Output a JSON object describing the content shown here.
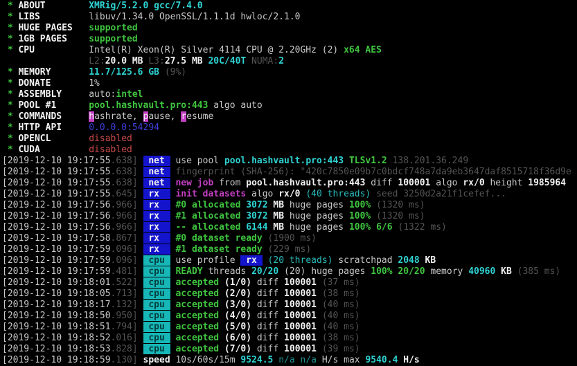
{
  "app": "XMRig miner console output",
  "colors": {
    "background": "#000000",
    "text": "#c9c9c9",
    "text_bright": "#f1f1f1",
    "green": "#3fc53f",
    "gray": "#545454",
    "cyan": "#2abdbd",
    "cyan_bright": "#2fd3d3",
    "cyan_dim": "#1f9191",
    "red": "#cd4a4a",
    "magenta": "#c33fc3",
    "blue": "#3e3ed8",
    "tag_blue_bg": "#1414cd",
    "tag_cyan_bg": "#17b7b7"
  },
  "tags": {
    "net": " net ",
    "rx": " rx  ",
    "cpu": " cpu "
  },
  "summary": [
    {
      "label": "ABOUT",
      "segments": [
        [
          "XMRig/5.2.0 gcc/7.4.0",
          "cb"
        ]
      ]
    },
    {
      "label": "LIBS",
      "segments": [
        [
          "libuv/1.34.0 OpenSSL/1.1.1d hwloc/2.1.0",
          "w"
        ]
      ]
    },
    {
      "label": "HUGE PAGES",
      "segments": [
        [
          "supported",
          "g"
        ]
      ]
    },
    {
      "label": "1GB PAGES",
      "segments": [
        [
          "supported",
          "g"
        ]
      ]
    },
    {
      "label": "CPU",
      "segments": [
        [
          "Intel(R) Xeon(R) Silver 4114 CPU @ 2.20GHz (2) ",
          "w"
        ],
        [
          "x64 AES",
          "g"
        ]
      ]
    },
    {
      "label": null,
      "segments": [
        [
          "L2:",
          "gr"
        ],
        [
          "20.0 MB ",
          "wb"
        ],
        [
          "L3:",
          "gr"
        ],
        [
          "27.5 MB ",
          "wb"
        ],
        [
          "20C/40T ",
          "cb"
        ],
        [
          "NUMA:",
          "gr"
        ],
        [
          "2",
          "cb"
        ]
      ]
    },
    {
      "label": "MEMORY",
      "segments": [
        [
          "11.7/125.6 GB ",
          "cb"
        ],
        [
          "(9%)",
          "gr"
        ]
      ]
    },
    {
      "label": "DONATE",
      "segments": [
        [
          "1%",
          "w"
        ]
      ]
    },
    {
      "label": "ASSEMBLY",
      "segments": [
        [
          "auto:",
          "w"
        ],
        [
          "intel",
          "g"
        ]
      ]
    },
    {
      "label": "POOL #1",
      "segments": [
        [
          "pool.hashvault.pro:443",
          "g"
        ],
        [
          " algo auto",
          "w"
        ]
      ]
    },
    {
      "label": "COMMANDS",
      "segments": [
        [
          "h",
          "hk"
        ],
        [
          "ashrate, ",
          "w"
        ],
        [
          "p",
          "hk"
        ],
        [
          "ause, ",
          "w"
        ],
        [
          "r",
          "hk"
        ],
        [
          "esume",
          "w"
        ]
      ]
    },
    {
      "label": "HTTP API",
      "segments": [
        [
          "0.0.0.0:54294",
          "bl"
        ]
      ]
    },
    {
      "label": "OPENCL",
      "segments": [
        [
          "disabled",
          "r"
        ]
      ]
    },
    {
      "label": "CUDA",
      "segments": [
        [
          "disabled",
          "r"
        ]
      ]
    }
  ],
  "log": [
    {
      "time": "2019-12-10 19:17:55",
      "ms": "638",
      "tag": "net",
      "segments": [
        [
          "use pool ",
          "w"
        ],
        [
          "pool.hashvault.pro:443 ",
          "cb"
        ],
        [
          "TLSv1.2 ",
          "g"
        ],
        [
          "138.201.36.249",
          "gr"
        ]
      ]
    },
    {
      "time": "2019-12-10 19:17:55",
      "ms": "638",
      "tag": "net",
      "segments": [
        [
          "fingerprint (SHA-256): \"420c7850e09b7c0bdcf748a7da9eb3647daf8515718f36d9e",
          "gr"
        ]
      ]
    },
    {
      "time": "2019-12-10 19:17:55",
      "ms": "638",
      "tag": "net",
      "segments": [
        [
          "new job",
          "mag"
        ],
        [
          " from ",
          "w"
        ],
        [
          "pool.hashvault.pro:443",
          "wb"
        ],
        [
          " diff ",
          "w"
        ],
        [
          "100001",
          "wb"
        ],
        [
          " algo ",
          "w"
        ],
        [
          "rx/0",
          "wb"
        ],
        [
          " height ",
          "w"
        ],
        [
          "1985964",
          "wb"
        ]
      ]
    },
    {
      "time": "2019-12-10 19:17:55",
      "ms": "645",
      "tag": "rx",
      "segments": [
        [
          "init datasets",
          "mag"
        ],
        [
          " algo ",
          "w"
        ],
        [
          "rx/0",
          "wb"
        ],
        [
          " (40 threads) ",
          "c"
        ],
        [
          "seed 3250d2a21f1cefef...",
          "gr"
        ]
      ]
    },
    {
      "time": "2019-12-10 19:17:56",
      "ms": "966",
      "tag": "rx",
      "segments": [
        [
          "#0 allocated ",
          "g"
        ],
        [
          "3072",
          "cb"
        ],
        [
          " MB",
          "wb"
        ],
        [
          " huge pages ",
          "w"
        ],
        [
          "100%",
          "g"
        ],
        [
          " (1320 ms)",
          "gr"
        ]
      ]
    },
    {
      "time": "2019-12-10 19:17:56",
      "ms": "966",
      "tag": "rx",
      "segments": [
        [
          "#1 allocated ",
          "g"
        ],
        [
          "3072",
          "cb"
        ],
        [
          " MB",
          "wb"
        ],
        [
          " huge pages ",
          "w"
        ],
        [
          "100%",
          "g"
        ],
        [
          " (1320 ms)",
          "gr"
        ]
      ]
    },
    {
      "time": "2019-12-10 19:17:56",
      "ms": "966",
      "tag": "rx",
      "segments": [
        [
          "-- allocated ",
          "g"
        ],
        [
          "6144",
          "cb"
        ],
        [
          " MB",
          "wb"
        ],
        [
          " huge pages ",
          "w"
        ],
        [
          "100%",
          "g"
        ],
        [
          " 6/6",
          "g"
        ],
        [
          " (1322 ms)",
          "gr"
        ]
      ]
    },
    {
      "time": "2019-12-10 19:17:58",
      "ms": "867",
      "tag": "rx",
      "segments": [
        [
          "#0 dataset ready",
          "g"
        ],
        [
          " (1900 ms)",
          "gr"
        ]
      ]
    },
    {
      "time": "2019-12-10 19:17:59",
      "ms": "096",
      "tag": "rx",
      "segments": [
        [
          "#1 dataset ready",
          "g"
        ],
        [
          " (229 ms)",
          "gr"
        ]
      ]
    },
    {
      "time": "2019-12-10 19:17:59",
      "ms": "096",
      "tag": "cpu",
      "segments": [
        [
          "use profile ",
          "w"
        ],
        [
          " rx ",
          "rxbox"
        ],
        [
          " ",
          "w"
        ],
        [
          "(20 threads)",
          "c"
        ],
        [
          " scratchpad ",
          "w"
        ],
        [
          "2048",
          "cb"
        ],
        [
          " KB",
          "wb"
        ]
      ]
    },
    {
      "time": "2019-12-10 19:17:59",
      "ms": "481",
      "tag": "cpu",
      "segments": [
        [
          "READY",
          "g"
        ],
        [
          " threads ",
          "w"
        ],
        [
          "20/20",
          "cb"
        ],
        [
          " (20) ",
          "w"
        ],
        [
          "huge pages ",
          "w"
        ],
        [
          "100%",
          "g"
        ],
        [
          " 20/20",
          "g"
        ],
        [
          " memory ",
          "w"
        ],
        [
          "40960",
          "cb"
        ],
        [
          " KB ",
          "wb"
        ],
        [
          "(385 ms)",
          "gr"
        ]
      ]
    },
    {
      "time": "2019-12-10 19:18:01",
      "ms": "522",
      "tag": "cpu",
      "segments": [
        [
          "accepted",
          "g"
        ],
        [
          " (1/0) ",
          "wb"
        ],
        [
          "diff ",
          "w"
        ],
        [
          "100001",
          "wb"
        ],
        [
          " (37 ms)",
          "gr"
        ]
      ]
    },
    {
      "time": "2019-12-10 19:18:05",
      "ms": "713",
      "tag": "cpu",
      "segments": [
        [
          "accepted",
          "g"
        ],
        [
          " (2/0) ",
          "wb"
        ],
        [
          "diff ",
          "w"
        ],
        [
          "100001",
          "wb"
        ],
        [
          " (38 ms)",
          "gr"
        ]
      ]
    },
    {
      "time": "2019-12-10 19:18:17",
      "ms": "132",
      "tag": "cpu",
      "segments": [
        [
          "accepted",
          "g"
        ],
        [
          " (3/0) ",
          "wb"
        ],
        [
          "diff ",
          "w"
        ],
        [
          "100001",
          "wb"
        ],
        [
          " (40 ms)",
          "gr"
        ]
      ]
    },
    {
      "time": "2019-12-10 19:18:50",
      "ms": "950",
      "tag": "cpu",
      "segments": [
        [
          "accepted",
          "g"
        ],
        [
          " (4/0) ",
          "wb"
        ],
        [
          "diff ",
          "w"
        ],
        [
          "100001",
          "wb"
        ],
        [
          " (40 ms)",
          "gr"
        ]
      ]
    },
    {
      "time": "2019-12-10 19:18:51",
      "ms": "794",
      "tag": "cpu",
      "segments": [
        [
          "accepted",
          "g"
        ],
        [
          " (5/0) ",
          "wb"
        ],
        [
          "diff ",
          "w"
        ],
        [
          "100001",
          "wb"
        ],
        [
          " (40 ms)",
          "gr"
        ]
      ]
    },
    {
      "time": "2019-12-10 19:18:52",
      "ms": "016",
      "tag": "cpu",
      "segments": [
        [
          "accepted",
          "g"
        ],
        [
          " (6/0) ",
          "wb"
        ],
        [
          "diff ",
          "w"
        ],
        [
          "100001",
          "wb"
        ],
        [
          " (38 ms)",
          "gr"
        ]
      ]
    },
    {
      "time": "2019-12-10 19:18:53",
      "ms": "828",
      "tag": "cpu",
      "segments": [
        [
          "accepted",
          "g"
        ],
        [
          " (7/0) ",
          "wb"
        ],
        [
          "diff ",
          "w"
        ],
        [
          "100001",
          "wb"
        ],
        [
          " (39 ms)",
          "gr"
        ]
      ]
    },
    {
      "time": "2019-12-10 19:18:59",
      "ms": "130",
      "tag": null,
      "segments": [
        [
          "speed ",
          "wb"
        ],
        [
          "10s/60s/15m ",
          "w"
        ],
        [
          "9524.5",
          "cb"
        ],
        [
          " n/a n/a ",
          "cd"
        ],
        [
          "H/s",
          "w"
        ],
        [
          " max ",
          "w"
        ],
        [
          "9540.4",
          "cb"
        ],
        [
          " H/s",
          "wb"
        ]
      ]
    }
  ]
}
